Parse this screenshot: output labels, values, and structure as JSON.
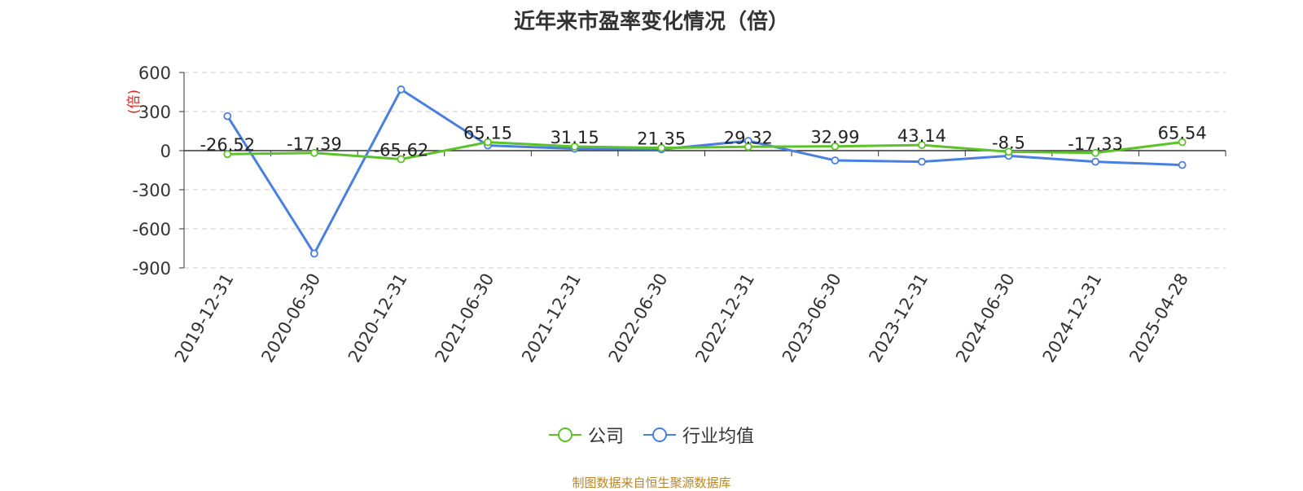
{
  "title": "近年来市盈率变化情况（倍）",
  "source": "制图数据来自恒生聚源数据库",
  "colors": {
    "company": "#5cc22a",
    "industry": "#4a7fe0",
    "ylabel": "#e02020"
  },
  "chart_data": {
    "type": "line",
    "title": "近年来市盈率变化情况（倍）",
    "ylabel": "(倍)",
    "xlabel": "",
    "categories": [
      "2019-12-31",
      "2020-06-30",
      "2020-12-31",
      "2021-06-30",
      "2021-12-31",
      "2022-06-30",
      "2022-12-31",
      "2023-06-30",
      "2023-12-31",
      "2024-06-30",
      "2024-12-31",
      "2025-04-28"
    ],
    "ylim": [
      -900,
      600
    ],
    "yticks": [
      600,
      300,
      0,
      -300,
      -600,
      -900
    ],
    "grid": true,
    "legend": "bottom-center",
    "series": [
      {
        "name": "公司",
        "values": [
          -26.52,
          -17.39,
          -65.62,
          65.15,
          31.15,
          21.35,
          29.32,
          32.99,
          43.14,
          -8.5,
          -17.33,
          65.54
        ],
        "labels": [
          "-26.52",
          "-17.39",
          "-65.62",
          "65.15",
          "31.15",
          "21.35",
          "29.32",
          "32.99",
          "43.14",
          "-8.5",
          "-17.33",
          "65.54"
        ]
      },
      {
        "name": "行业均值",
        "values": [
          265,
          -790,
          470,
          40,
          15,
          10,
          75,
          -75,
          -85,
          -40,
          -85,
          -110
        ]
      }
    ]
  }
}
